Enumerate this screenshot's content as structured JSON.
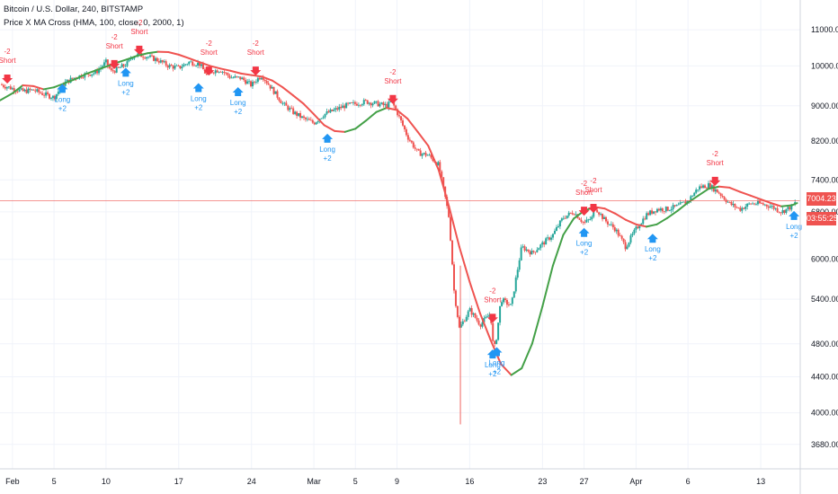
{
  "header": {
    "title_line": "Bitcoin / U.S. Dollar, 240, BITSTAMP",
    "indicator_line": "Price X MA Cross (HMA, 100, close, 0, 2000, 1)"
  },
  "price_tag": {
    "last_price": "7004.23",
    "countdown": "03:55:25"
  },
  "colors": {
    "ma_up": "#43a047",
    "ma_down": "#ef5350",
    "candle_up": "#26a69a",
    "candle_down": "#ef5350",
    "long": "#2196f3",
    "short": "#f23645",
    "last_price_line": "#ef5350"
  },
  "chart_data": {
    "type": "line",
    "title": "Bitcoin / U.S. Dollar, 240, BITSTAMP",
    "y_scale": "log",
    "ylim": [
      3450,
      11900
    ],
    "grid": true,
    "legend": "top-left",
    "y_ticks": [
      3680,
      4000,
      4400,
      4800,
      5400,
      6000,
      6800,
      7400,
      8200,
      9000,
      10000,
      11000
    ],
    "y_tick_labels": [
      "3680.00",
      "4000.00",
      "4400.00",
      "4800.00",
      "5400.00",
      "6000.00",
      "6800.00",
      "7400.00",
      "8200.00",
      "9000.00",
      "10000.00",
      "11000.00"
    ],
    "x_ticks": [
      {
        "label": "Feb",
        "d": 0
      },
      {
        "label": "5",
        "d": 4
      },
      {
        "label": "10",
        "d": 9
      },
      {
        "label": "17",
        "d": 16
      },
      {
        "label": "24",
        "d": 23
      },
      {
        "label": "Mar",
        "d": 29
      },
      {
        "label": "5",
        "d": 33
      },
      {
        "label": "9",
        "d": 37
      },
      {
        "label": "16",
        "d": 44
      },
      {
        "label": "23",
        "d": 51
      },
      {
        "label": "27",
        "d": 55
      },
      {
        "label": "Apr",
        "d": 60
      },
      {
        "label": "6",
        "d": 65
      },
      {
        "label": "13",
        "d": 72
      }
    ],
    "series": [
      {
        "name": "Price",
        "kind": "close",
        "points": [
          [
            -1.2,
            9520
          ],
          [
            0,
            9420
          ],
          [
            1,
            9350
          ],
          [
            2,
            9380
          ],
          [
            3,
            9280
          ],
          [
            4,
            9200
          ],
          [
            5,
            9560
          ],
          [
            6,
            9700
          ],
          [
            7,
            9780
          ],
          [
            8,
            9820
          ],
          [
            9,
            10100
          ],
          [
            9.5,
            9850
          ],
          [
            10,
            9900
          ],
          [
            11,
            10050
          ],
          [
            11.5,
            10250
          ],
          [
            12,
            10300
          ],
          [
            13,
            10250
          ],
          [
            14,
            10150
          ],
          [
            15,
            10000
          ],
          [
            16,
            9950
          ],
          [
            17,
            10100
          ],
          [
            18,
            10050
          ],
          [
            18.7,
            9750
          ],
          [
            19,
            9850
          ],
          [
            20,
            9900
          ],
          [
            21,
            9700
          ],
          [
            22,
            9680
          ],
          [
            23,
            9500
          ],
          [
            23.5,
            9650
          ],
          [
            24,
            9750
          ],
          [
            25,
            9400
          ],
          [
            26,
            9050
          ],
          [
            27,
            8850
          ],
          [
            28,
            8700
          ],
          [
            29,
            8600
          ],
          [
            30,
            8800
          ],
          [
            31,
            8900
          ],
          [
            32,
            9000
          ],
          [
            33,
            9050
          ],
          [
            34,
            9100
          ],
          [
            35,
            9050
          ],
          [
            36,
            9000
          ],
          [
            36.5,
            9100
          ],
          [
            37,
            8850
          ],
          [
            38,
            8300
          ],
          [
            39,
            7950
          ],
          [
            40,
            7900
          ],
          [
            41,
            7700
          ],
          [
            42,
            6700
          ],
          [
            42.5,
            5500
          ],
          [
            43,
            5000
          ],
          [
            44,
            5250
          ],
          [
            45,
            5050
          ],
          [
            46,
            5200
          ],
          [
            46.3,
            4700
          ],
          [
            46.6,
            4900
          ],
          [
            47,
            5400
          ],
          [
            48,
            5300
          ],
          [
            49,
            6200
          ],
          [
            50,
            6100
          ],
          [
            51,
            6250
          ],
          [
            52,
            6400
          ],
          [
            53,
            6700
          ],
          [
            54,
            6800
          ],
          [
            55,
            6600
          ],
          [
            55.8,
            6700
          ],
          [
            56,
            6900
          ],
          [
            57,
            6650
          ],
          [
            58,
            6500
          ],
          [
            59,
            6200
          ],
          [
            60,
            6500
          ],
          [
            61,
            6750
          ],
          [
            62,
            6850
          ],
          [
            63,
            6850
          ],
          [
            64,
            6900
          ],
          [
            65,
            7000
          ],
          [
            66,
            7250
          ],
          [
            67,
            7300
          ],
          [
            68,
            7150
          ],
          [
            69,
            6950
          ],
          [
            70,
            6850
          ],
          [
            71,
            6950
          ],
          [
            72,
            6950
          ],
          [
            73,
            6900
          ],
          [
            74,
            6800
          ],
          [
            75,
            6900
          ],
          [
            75.5,
            7000
          ]
        ]
      },
      {
        "name": "HMA 100",
        "kind": "ma",
        "points": [
          [
            -1.2,
            9130
          ],
          [
            0,
            9300
          ],
          [
            1,
            9500
          ],
          [
            2,
            9480
          ],
          [
            3,
            9400
          ],
          [
            4,
            9450
          ],
          [
            5,
            9550
          ],
          [
            6,
            9650
          ],
          [
            7,
            9780
          ],
          [
            8,
            9880
          ],
          [
            9,
            9980
          ],
          [
            10,
            10080
          ],
          [
            11,
            10170
          ],
          [
            12,
            10270
          ],
          [
            13,
            10340
          ],
          [
            14,
            10380
          ],
          [
            15,
            10370
          ],
          [
            16,
            10300
          ],
          [
            17,
            10200
          ],
          [
            18,
            10100
          ],
          [
            19,
            10000
          ],
          [
            20,
            9930
          ],
          [
            21,
            9870
          ],
          [
            22,
            9800
          ],
          [
            23,
            9760
          ],
          [
            24,
            9720
          ],
          [
            25,
            9620
          ],
          [
            26,
            9450
          ],
          [
            27,
            9250
          ],
          [
            28,
            9050
          ],
          [
            29,
            8800
          ],
          [
            30,
            8550
          ],
          [
            31,
            8420
          ],
          [
            32,
            8400
          ],
          [
            33,
            8470
          ],
          [
            34,
            8650
          ],
          [
            35,
            8850
          ],
          [
            36,
            8950
          ],
          [
            37,
            8900
          ],
          [
            38,
            8700
          ],
          [
            39,
            8400
          ],
          [
            40,
            8100
          ],
          [
            41,
            7600
          ],
          [
            42,
            6900
          ],
          [
            43,
            6200
          ],
          [
            44,
            5650
          ],
          [
            45,
            5200
          ],
          [
            46,
            4850
          ],
          [
            47,
            4550
          ],
          [
            48,
            4420
          ],
          [
            49,
            4500
          ],
          [
            50,
            4800
          ],
          [
            51,
            5300
          ],
          [
            52,
            5900
          ],
          [
            53,
            6400
          ],
          [
            54,
            6680
          ],
          [
            55,
            6820
          ],
          [
            56,
            6890
          ],
          [
            57,
            6860
          ],
          [
            58,
            6770
          ],
          [
            59,
            6660
          ],
          [
            60,
            6580
          ],
          [
            61,
            6540
          ],
          [
            62,
            6580
          ],
          [
            63,
            6690
          ],
          [
            64,
            6820
          ],
          [
            65,
            6970
          ],
          [
            66,
            7100
          ],
          [
            67,
            7230
          ],
          [
            68,
            7270
          ],
          [
            69,
            7250
          ],
          [
            70,
            7170
          ],
          [
            71,
            7100
          ],
          [
            72,
            7030
          ],
          [
            73,
            6960
          ],
          [
            74,
            6900
          ],
          [
            75,
            6920
          ],
          [
            75.5,
            6960
          ]
        ]
      }
    ],
    "signals": [
      {
        "kind": "short",
        "d": -0.5,
        "price": 9500,
        "qty": "-2",
        "label": "Short"
      },
      {
        "kind": "long",
        "d": 4.8,
        "price": 9580,
        "qty": "+2",
        "label": "Long"
      },
      {
        "kind": "short",
        "d": 9.8,
        "price": 9870,
        "qty": "-2",
        "label": "Short"
      },
      {
        "kind": "long",
        "d": 10.9,
        "price": 10000,
        "qty": "+2",
        "label": "Long"
      },
      {
        "kind": "short",
        "d": 12.2,
        "price": 10250,
        "qty": "-2",
        "label": "Short"
      },
      {
        "kind": "long",
        "d": 17.9,
        "price": 9600,
        "qty": "+2",
        "label": "Long"
      },
      {
        "kind": "short",
        "d": 18.9,
        "price": 9700,
        "qty": "-2",
        "label": "Short"
      },
      {
        "kind": "long",
        "d": 21.7,
        "price": 9500,
        "qty": "+2",
        "label": "Long"
      },
      {
        "kind": "short",
        "d": 23.4,
        "price": 9700,
        "qty": "-2",
        "label": "Short"
      },
      {
        "kind": "long",
        "d": 30.3,
        "price": 8400,
        "qty": "+2",
        "label": "Long"
      },
      {
        "kind": "short",
        "d": 36.6,
        "price": 9000,
        "qty": "-2",
        "label": "Short"
      },
      {
        "kind": "short",
        "d": 46.2,
        "price": 5050,
        "qty": "-2",
        "label": "Short"
      },
      {
        "kind": "long",
        "d": 46.2,
        "price": 4750,
        "qty": "+2",
        "label": "Long"
      },
      {
        "kind": "long",
        "d": 46.6,
        "price": 4780,
        "qty": "+2",
        "label": "Long"
      },
      {
        "kind": "short",
        "d": 55.0,
        "price": 6700,
        "qty": "-2",
        "label": "Short"
      },
      {
        "kind": "long",
        "d": 55.0,
        "price": 6550,
        "qty": "+2",
        "label": "Long"
      },
      {
        "kind": "short",
        "d": 55.9,
        "price": 6750,
        "qty": "-2",
        "label": "Short"
      },
      {
        "kind": "long",
        "d": 61.6,
        "price": 6450,
        "qty": "+2",
        "label": "Long"
      },
      {
        "kind": "short",
        "d": 67.6,
        "price": 7250,
        "qty": "-2",
        "label": "Short"
      },
      {
        "kind": "long",
        "d": 75.2,
        "price": 6850,
        "qty": "+2",
        "label": "Long"
      }
    ],
    "last_price": 7004.23
  }
}
